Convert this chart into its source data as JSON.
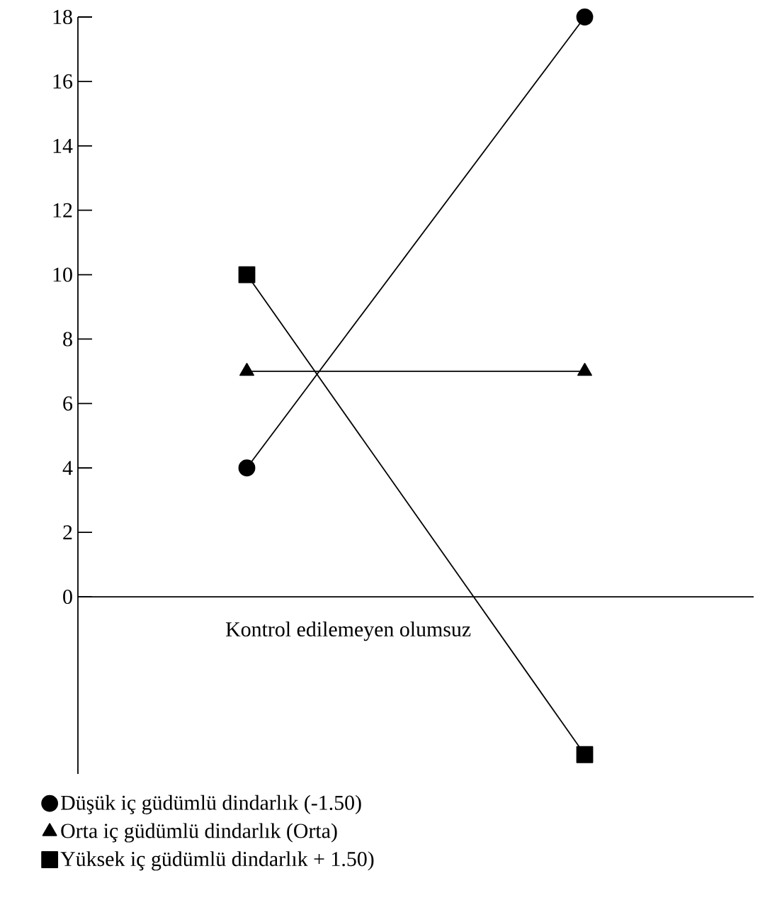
{
  "chart_data": {
    "type": "line",
    "xlabel": "Kontrol edilemeyen olumsuz",
    "categories": [
      null,
      null
    ],
    "series": [
      {
        "name": "Düşük iç güdümlü dindarlık (-1.50)",
        "color": "#000000",
        "marker": "circle",
        "values": [
          4,
          18
        ]
      },
      {
        "name": "Orta iç güdümlü dindarlık (Orta)",
        "color": "#000000",
        "marker": "triangle",
        "values": [
          7,
          7
        ]
      },
      {
        "name": "Yüksek iç güdümlü dindarlık + 1.50)",
        "color": "#000000",
        "marker": "square",
        "values": [
          10,
          -4.9
        ]
      }
    ],
    "ylim": [
      -5.5,
      18
    ],
    "yticks": [
      0,
      2,
      4,
      6,
      8,
      10,
      12,
      14,
      16,
      18
    ],
    "legend": "bottom",
    "tick_labels": "y",
    "grid": false,
    "line_style": "solid"
  }
}
